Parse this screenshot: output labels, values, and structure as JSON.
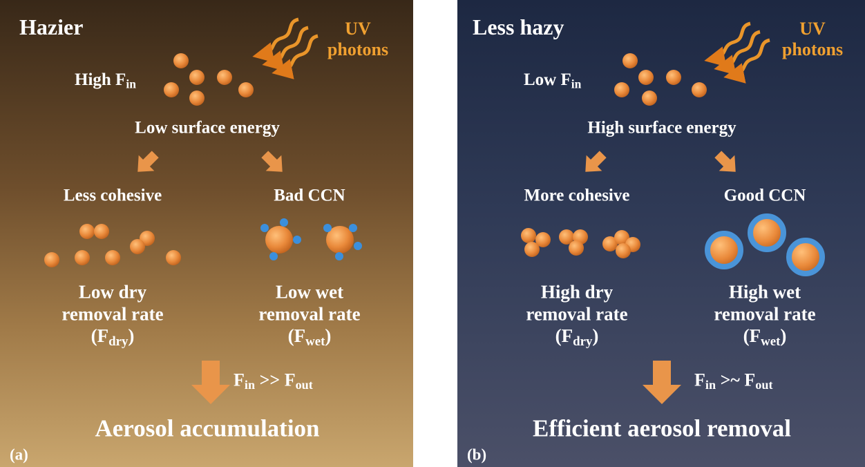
{
  "panels": [
    {
      "tag": "(a)",
      "title": "Hazier",
      "uv": [
        "UV",
        "photons"
      ],
      "flux": [
        {
          "t": "High F"
        },
        {
          "t": "in",
          "sub": true
        }
      ],
      "surface": "Low surface energy",
      "left": {
        "heading": "Less cohesive",
        "rate": [
          "Low dry",
          "removal rate",
          [
            {
              "t": "(F"
            },
            {
              "t": "dry",
              "sub": true
            },
            {
              "t": ")"
            }
          ]
        ]
      },
      "right": {
        "heading": "Bad CCN",
        "rate": [
          "Low wet",
          "removal rate",
          [
            {
              "t": "(F"
            },
            {
              "t": "wet",
              "sub": true
            },
            {
              "t": ")"
            }
          ]
        ]
      },
      "balance": [
        {
          "t": "F"
        },
        {
          "t": "in",
          "sub": true
        },
        {
          "t": " >> F"
        },
        {
          "t": "out",
          "sub": true
        }
      ],
      "result": "Aerosol accumulation"
    },
    {
      "tag": "(b)",
      "title": "Less hazy",
      "uv": [
        "UV",
        "photons"
      ],
      "flux": [
        {
          "t": "Low F"
        },
        {
          "t": "in",
          "sub": true
        }
      ],
      "surface": "High surface energy",
      "left": {
        "heading": "More cohesive",
        "rate": [
          "High dry",
          "removal rate",
          [
            {
              "t": "(F"
            },
            {
              "t": "dry",
              "sub": true
            },
            {
              "t": ")"
            }
          ]
        ]
      },
      "right": {
        "heading": "Good CCN",
        "rate": [
          "High wet",
          "removal rate",
          [
            {
              "t": "(F"
            },
            {
              "t": "wet",
              "sub": true
            },
            {
              "t": ")"
            }
          ]
        ]
      },
      "balance": [
        {
          "t": "F"
        },
        {
          "t": "in",
          "sub": true
        },
        {
          "t": " >~ F"
        },
        {
          "t": "out",
          "sub": true
        }
      ],
      "result": "Efficient aerosol removal"
    }
  ]
}
